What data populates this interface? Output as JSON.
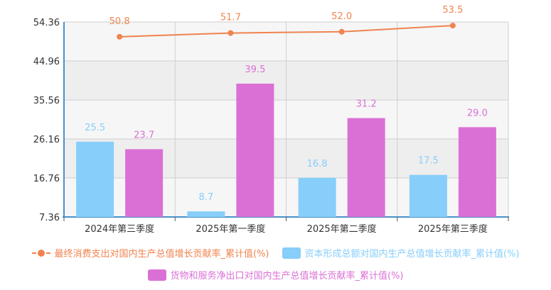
{
  "chart_data": {
    "type": "bar",
    "categories": [
      "2024年第三季度",
      "2025年第一季度",
      "2025年第二季度",
      "2025年第三季度"
    ],
    "ylim": [
      7.36,
      54.36
    ],
    "yticks": [
      "7.36",
      "16.76",
      "26.16",
      "35.56",
      "44.96",
      "54.36"
    ],
    "grid": true,
    "legend_position": "bottom",
    "series": [
      {
        "name": "最终消费支出对国内生产总值增长贡献率_累计值(%)",
        "type": "line",
        "values": [
          50.8,
          51.7,
          52.0,
          53.5
        ],
        "labels": [
          "50.8",
          "51.7",
          "52.0",
          "53.5"
        ],
        "color": "#f0834f"
      },
      {
        "name": "资本形成总额对国内生产总值增长贡献率_累计值(%)",
        "type": "bar",
        "values": [
          25.5,
          8.7,
          16.8,
          17.5
        ],
        "labels": [
          "25.5",
          "8.7",
          "16.8",
          "17.5"
        ],
        "color": "#87cefa"
      },
      {
        "name": "货物和服务净出口对国内生产总值增长贡献率_累计值(%)",
        "type": "bar",
        "values": [
          23.7,
          39.5,
          31.2,
          29.0
        ],
        "labels": [
          "23.7",
          "39.5",
          "31.2",
          "29.0"
        ],
        "color": "#da70d6"
      }
    ]
  }
}
